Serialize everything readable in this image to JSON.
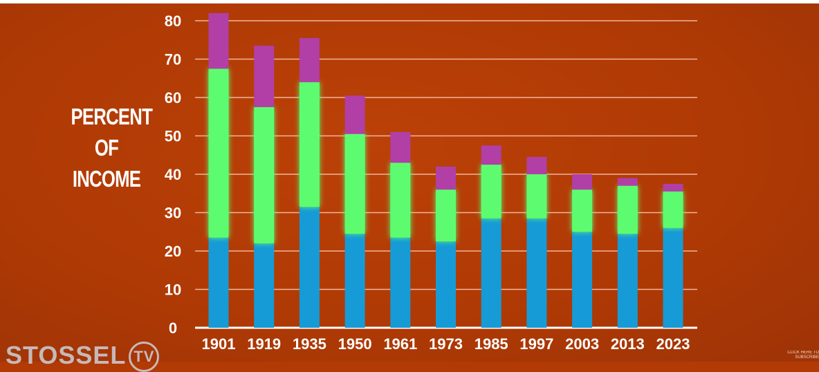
{
  "chart_data": {
    "type": "bar",
    "stacked": true,
    "ylabel_lines": [
      "PERCENT",
      "OF",
      "INCOME"
    ],
    "ylim": [
      0,
      80
    ],
    "yticks": [
      0,
      10,
      20,
      30,
      40,
      50,
      60,
      70,
      80
    ],
    "grid": true,
    "categories": [
      "1901",
      "1919",
      "1935",
      "1950",
      "1961",
      "1973",
      "1985",
      "1997",
      "2003",
      "2013",
      "2023"
    ],
    "series": [
      {
        "name": "blue segment",
        "color": "#169bd6",
        "values": [
          23.5,
          22,
          31.5,
          24.5,
          23.5,
          22.5,
          28.5,
          28.5,
          25,
          24.5,
          26
        ]
      },
      {
        "name": "green segment",
        "color": "#5dfc6f",
        "values": [
          44,
          35.5,
          32.5,
          26,
          19.5,
          13.5,
          14,
          11.5,
          11,
          12.5,
          9.5
        ]
      },
      {
        "name": "purple segment",
        "color": "#b13fa6",
        "values": [
          14.5,
          16,
          11.5,
          10,
          8,
          6,
          5,
          4.5,
          4,
          2,
          2
        ]
      }
    ]
  },
  "watermark": {
    "text": "STOSSEL",
    "badge": "TV"
  },
  "subscribe": {
    "line1": "CLICK HERE TO",
    "line2": "SUBSCRIBE"
  }
}
